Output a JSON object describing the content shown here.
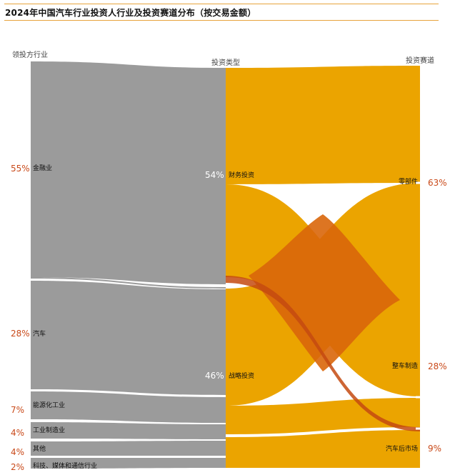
{
  "title": "2024年中国汽车行业投资人行业及投资赛道分布（按交易金额）",
  "columns": {
    "left": "领投方行业",
    "middle": "投资类型",
    "right": "投资赛道"
  },
  "left_nodes": [
    {
      "label": "金融业",
      "percent": "55%"
    },
    {
      "label": "汽车",
      "percent": "28%"
    },
    {
      "label": "能源化工业",
      "percent": "7%"
    },
    {
      "label": "工业制造业",
      "percent": "4%"
    },
    {
      "label": "其他",
      "percent": "4%"
    },
    {
      "label": "科技、媒体和通信行业",
      "percent": "2%"
    }
  ],
  "middle_nodes": [
    {
      "label": "财务投资",
      "percent": "54%"
    },
    {
      "label": "战略投资",
      "percent": "46%"
    }
  ],
  "right_nodes": [
    {
      "label": "零部件",
      "percent": "63%"
    },
    {
      "label": "整车制造",
      "percent": "28%"
    },
    {
      "label": "汽车后市场",
      "percent": "9%"
    }
  ],
  "colors": {
    "left_flow": "#9b9b9b",
    "right_flow": "#eba400",
    "overlap": "#d9660a",
    "dark_ribbon": "#c44a10",
    "percent_text": "#c94a1a",
    "title_rule": "#e8a33c"
  },
  "chart_data": {
    "type": "sankey",
    "units": "percent of transaction amount",
    "stage1_flows": [
      {
        "from": "金融业",
        "to": "财务投资",
        "value": 52
      },
      {
        "from": "金融业",
        "to": "战略投资",
        "value": 3
      },
      {
        "from": "汽车",
        "to": "财务投资",
        "value": 1
      },
      {
        "from": "汽车",
        "to": "战略投资",
        "value": 27
      },
      {
        "from": "能源化工业",
        "to": "战略投资",
        "value": 7
      },
      {
        "from": "工业制造业",
        "to": "战略投资",
        "value": 4
      },
      {
        "from": "其他",
        "to": "财务投资",
        "value": 1
      },
      {
        "from": "其他",
        "to": "战略投资",
        "value": 3
      },
      {
        "from": "科技、媒体和通信行业",
        "to": "战略投资",
        "value": 2
      }
    ],
    "stage2_flows": [
      {
        "from": "财务投资",
        "to": "零部件",
        "value": 27
      },
      {
        "from": "财务投资",
        "to": "整车制造",
        "value": 23
      },
      {
        "from": "财务投资",
        "to": "汽车后市场",
        "value": 4
      },
      {
        "from": "战略投资",
        "to": "零部件",
        "value": 36
      },
      {
        "from": "战略投资",
        "to": "整车制造",
        "value": 5
      },
      {
        "from": "战略投资",
        "to": "汽车后市场",
        "value": 5
      }
    ]
  }
}
